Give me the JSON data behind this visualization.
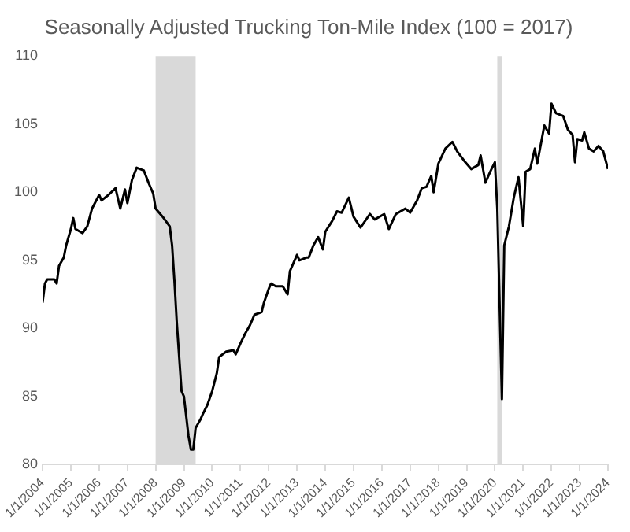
{
  "chart_data": {
    "type": "line",
    "title": "Seasonally Adjusted Trucking Ton-Mile Index (100 = 2017)",
    "x": [
      "2004-01",
      "2004-02",
      "2004-03",
      "2004-06",
      "2004-07",
      "2004-08",
      "2004-10",
      "2004-11",
      "2005-01",
      "2005-02",
      "2005-03",
      "2005-06",
      "2005-08",
      "2005-10",
      "2006-01",
      "2006-02",
      "2006-05",
      "2006-08",
      "2006-10",
      "2006-12",
      "2007-01",
      "2007-03",
      "2007-05",
      "2007-08",
      "2007-10",
      "2007-12",
      "2008-01",
      "2008-04",
      "2008-07",
      "2008-08",
      "2008-09",
      "2008-10",
      "2008-12",
      "2009-01",
      "2009-03",
      "2009-04",
      "2009-05",
      "2009-06",
      "2009-08",
      "2009-09",
      "2009-11",
      "2010-01",
      "2010-03",
      "2010-04",
      "2010-07",
      "2010-10",
      "2010-11",
      "2011-01",
      "2011-03",
      "2011-05",
      "2011-07",
      "2011-10",
      "2011-11",
      "2012-01",
      "2012-02",
      "2012-04",
      "2012-07",
      "2012-09",
      "2012-10",
      "2013-01",
      "2013-02",
      "2013-05",
      "2013-06",
      "2013-08",
      "2013-10",
      "2013-12",
      "2014-01",
      "2014-04",
      "2014-06",
      "2014-08",
      "2014-11",
      "2015-01",
      "2015-04",
      "2015-08",
      "2015-10",
      "2016-02",
      "2016-04",
      "2016-07",
      "2016-11",
      "2017-01",
      "2017-04",
      "2017-06",
      "2017-08",
      "2017-10",
      "2017-11",
      "2018-01",
      "2018-04",
      "2018-07",
      "2018-09",
      "2018-12",
      "2019-03",
      "2019-06",
      "2019-07",
      "2019-09",
      "2019-11",
      "2020-01",
      "2020-02",
      "2020-04",
      "2020-05",
      "2020-07",
      "2020-09",
      "2020-11",
      "2021-01",
      "2021-02",
      "2021-04",
      "2021-06",
      "2021-07",
      "2021-10",
      "2021-12",
      "2022-01",
      "2022-03",
      "2022-06",
      "2022-08",
      "2022-10",
      "2022-11",
      "2022-12",
      "2023-02",
      "2023-03",
      "2023-05",
      "2023-07",
      "2023-09",
      "2023-11",
      "2024-01"
    ],
    "series": [
      {
        "color": "#000000",
        "values": [
          91.9,
          93.3,
          93.6,
          93.6,
          93.3,
          94.6,
          95.2,
          96.1,
          97.3,
          98.1,
          97.3,
          97.0,
          97.5,
          98.8,
          99.8,
          99.4,
          99.8,
          100.3,
          98.8,
          100.2,
          99.2,
          100.9,
          101.8,
          101.6,
          100.7,
          99.9,
          98.8,
          98.2,
          97.5,
          96.1,
          93.4,
          90.4,
          85.4,
          85.0,
          82.1,
          81.1,
          81.1,
          82.7,
          83.3,
          83.7,
          84.4,
          85.4,
          86.7,
          87.9,
          88.3,
          88.4,
          88.1,
          88.9,
          89.6,
          90.2,
          91.0,
          91.2,
          91.9,
          92.9,
          93.3,
          93.1,
          93.1,
          92.5,
          94.2,
          95.4,
          95.0,
          95.2,
          95.2,
          96.1,
          96.7,
          95.8,
          97.1,
          97.9,
          98.6,
          98.5,
          99.6,
          98.2,
          97.4,
          98.4,
          98.0,
          98.4,
          97.3,
          98.4,
          98.8,
          98.5,
          99.4,
          100.3,
          100.4,
          101.2,
          100.0,
          102.1,
          103.2,
          103.7,
          103.0,
          102.3,
          101.7,
          102.0,
          102.7,
          100.7,
          101.5,
          102.2,
          98.8,
          84.8,
          96.1,
          97.5,
          99.6,
          101.1,
          97.5,
          101.5,
          101.7,
          103.2,
          102.1,
          104.9,
          104.3,
          106.5,
          105.8,
          105.6,
          104.6,
          104.2,
          102.2,
          103.9,
          103.8,
          104.4,
          103.2,
          103.0,
          103.4,
          103.0,
          101.7
        ]
      }
    ],
    "xlim": [
      "2004-01",
      "2024-01"
    ],
    "xticks": [
      {
        "value": "2004-01",
        "label": "1/1/2004"
      },
      {
        "value": "2005-01",
        "label": "1/1/2005"
      },
      {
        "value": "2006-01",
        "label": "1/1/2006"
      },
      {
        "value": "2007-01",
        "label": "1/1/2007"
      },
      {
        "value": "2008-01",
        "label": "1/1/2008"
      },
      {
        "value": "2009-01",
        "label": "1/1/2009"
      },
      {
        "value": "2010-01",
        "label": "1/1/2010"
      },
      {
        "value": "2011-01",
        "label": "1/1/2011"
      },
      {
        "value": "2012-01",
        "label": "1/1/2012"
      },
      {
        "value": "2013-01",
        "label": "1/1/2013"
      },
      {
        "value": "2014-01",
        "label": "1/1/2014"
      },
      {
        "value": "2015-01",
        "label": "1/1/2015"
      },
      {
        "value": "2016-01",
        "label": "1/1/2016"
      },
      {
        "value": "2017-01",
        "label": "1/1/2017"
      },
      {
        "value": "2018-01",
        "label": "1/1/2018"
      },
      {
        "value": "2019-01",
        "label": "1/1/2019"
      },
      {
        "value": "2020-01",
        "label": "1/1/2020"
      },
      {
        "value": "2021-01",
        "label": "1/1/2021"
      },
      {
        "value": "2022-01",
        "label": "1/1/2022"
      },
      {
        "value": "2023-01",
        "label": "1/1/2023"
      },
      {
        "value": "2024-01",
        "label": "1/1/2024"
      }
    ],
    "ylim": [
      80,
      110
    ],
    "yticks": [
      80,
      85,
      90,
      95,
      100,
      105,
      110
    ],
    "bands": [
      {
        "axis": "x",
        "from": "2008-01",
        "to": "2009-06",
        "color": "#d9d9d9"
      },
      {
        "axis": "x",
        "from": "2020-02",
        "to": "2020-04",
        "color": "#d9d9d9"
      }
    ],
    "grid": false,
    "legend": false,
    "marker": "none",
    "line_style": "solid"
  }
}
